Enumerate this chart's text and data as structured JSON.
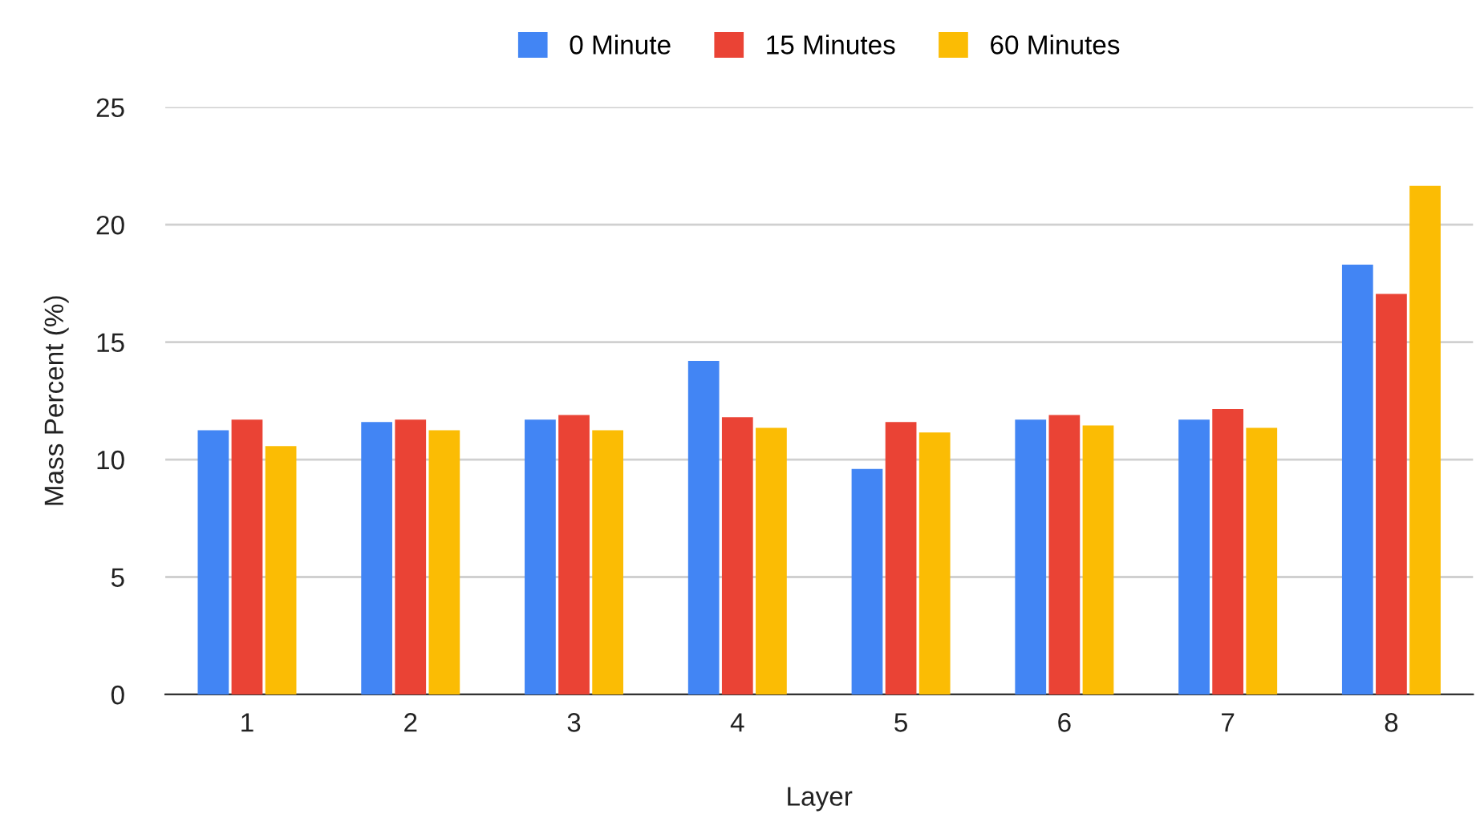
{
  "chart_data": {
    "type": "bar",
    "xlabel": "Layer",
    "ylabel": "Mass Percent (%)",
    "categories": [
      "1",
      "2",
      "3",
      "4",
      "5",
      "6",
      "7",
      "8"
    ],
    "series": [
      {
        "name": "0 Minute",
        "color": "#4285f4",
        "values": [
          11.25,
          11.6,
          11.7,
          14.2,
          9.6,
          11.7,
          11.7,
          18.3
        ]
      },
      {
        "name": "15 Minutes",
        "color": "#ea4335",
        "values": [
          11.7,
          11.7,
          11.9,
          11.8,
          11.6,
          11.9,
          12.15,
          17.05
        ]
      },
      {
        "name": "60 Minutes",
        "color": "#fbbc04",
        "values": [
          10.57,
          11.25,
          11.25,
          11.35,
          11.15,
          11.45,
          11.35,
          21.65
        ]
      }
    ],
    "ylim": [
      0,
      25
    ],
    "yticks": [
      0,
      5,
      10,
      15,
      20,
      25
    ],
    "grid": "y",
    "legend": "top"
  }
}
